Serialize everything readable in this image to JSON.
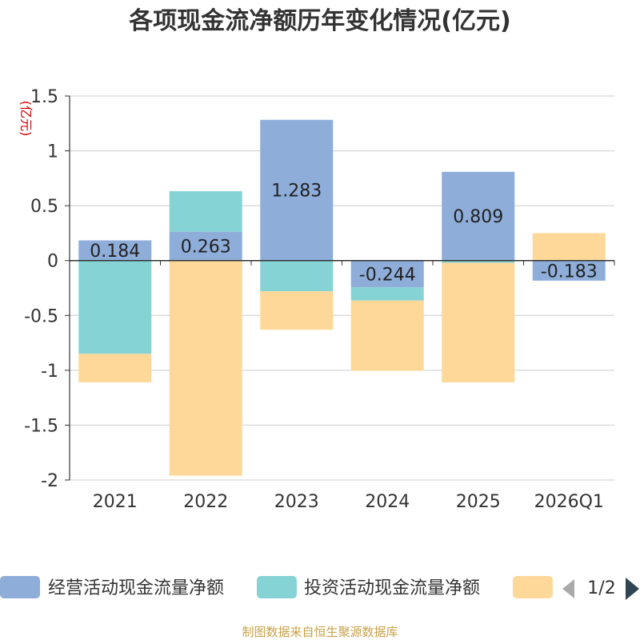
{
  "chart_data": {
    "type": "bar",
    "stacked": true,
    "title": "各项现金流净额历年变化情况(亿元)",
    "ylabel": "(亿元)",
    "ylim": [
      -2,
      1.5
    ],
    "yticks": [
      1.5,
      1,
      0.5,
      0,
      -0.5,
      -1,
      -1.5,
      -2
    ],
    "ytick_labels": [
      "1.5",
      "1",
      "0.5",
      "0",
      "-0.5",
      "-1",
      "-1.5",
      "-2"
    ],
    "grid": true,
    "categories": [
      "2021",
      "2022",
      "2023",
      "2024",
      "2025",
      "2026Q1"
    ],
    "series": [
      {
        "name": "经营活动现金流量净额",
        "values": [
          0.184,
          0.263,
          1.283,
          -0.244,
          0.809,
          -0.183
        ],
        "labels": [
          "0.184",
          "0.263",
          "1.283",
          "-0.244",
          "0.809",
          "-0.183"
        ]
      },
      {
        "name": "投资活动现金流量净额",
        "values": [
          -0.85,
          0.37,
          -0.28,
          -0.12,
          -0.02,
          0.0
        ]
      },
      {
        "name": "",
        "values": [
          -0.26,
          -1.96,
          -0.35,
          -0.64,
          -1.09,
          0.25
        ]
      }
    ],
    "legend": {
      "position": "bottom",
      "entries": [
        "经营活动现金流量净额",
        "投资活动现金流量净额",
        ""
      ],
      "page": "1/2"
    },
    "source": "制图数据来自恒生聚源数据库"
  },
  "colors": {
    "operating": "#8eadd9",
    "investing": "#86d3d6",
    "financing": "#fdd899",
    "grid": "#cccccc",
    "axis": "#333333",
    "unit": "#cc0000",
    "source": "#c8a24a",
    "pager_prev": "#aaaaaa",
    "pager_next": "#2f4554"
  }
}
